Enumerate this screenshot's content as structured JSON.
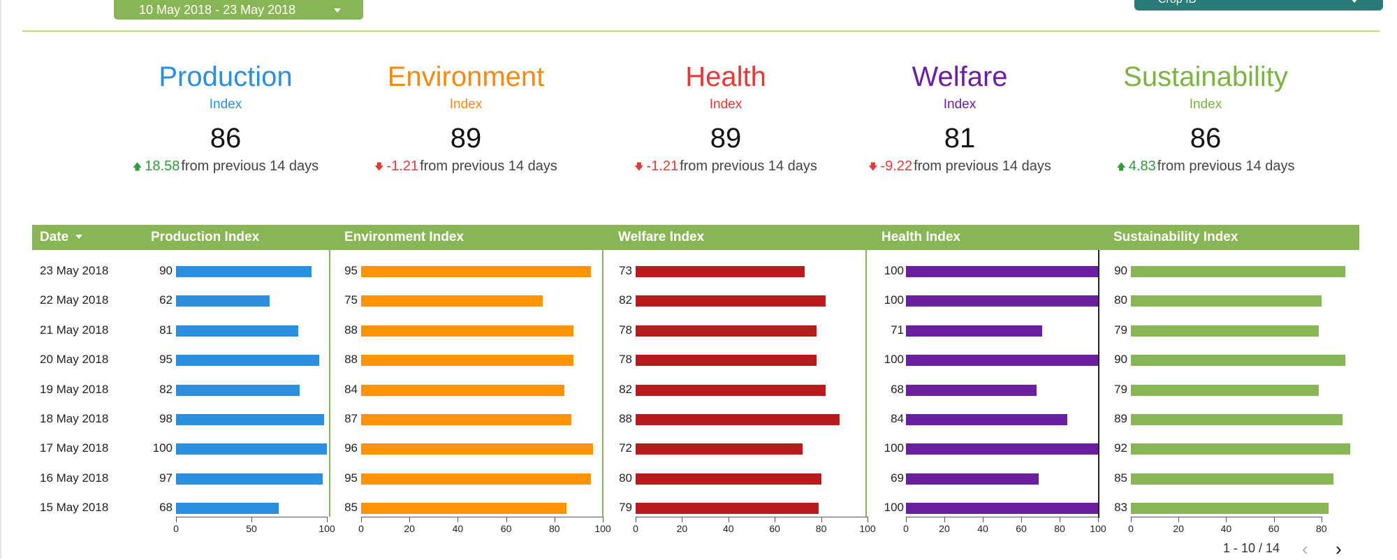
{
  "date_range": {
    "label": "10 May 2018 - 23 May 2018"
  },
  "crop_select": {
    "label": "Crop ID"
  },
  "kpis": [
    {
      "title": "Production",
      "subtitle": "Index",
      "value": "86",
      "direction": "up",
      "delta": "18.58",
      "suffix": "from previous 14 days",
      "color": "#2b8fe0",
      "delta_color": "#2e9a3a"
    },
    {
      "title": "Environment",
      "subtitle": "Index",
      "value": "89",
      "direction": "down",
      "delta": "-1.21",
      "suffix": "from previous 14 days",
      "color": "#f48a14",
      "delta_color": "#e53935"
    },
    {
      "title": "Health",
      "subtitle": "Index",
      "value": "89",
      "direction": "down",
      "delta": "-1.21",
      "suffix": "from previous 14 days",
      "color": "#e53935",
      "delta_color": "#e53935"
    },
    {
      "title": "Welfare",
      "subtitle": "Index",
      "value": "81",
      "direction": "down",
      "delta": "-9.22",
      "suffix": "from previous 14 days",
      "color": "#6a1fa0",
      "delta_color": "#e53935"
    },
    {
      "title": "Sustainability",
      "subtitle": "Index",
      "value": "86",
      "direction": "up",
      "delta": "4.83",
      "suffix": "from previous 14 days",
      "color": "#7cb342",
      "delta_color": "#2e9a3a"
    }
  ],
  "table": {
    "headers": [
      "Date",
      "Production Index",
      "Environment Index",
      "Welfare Index",
      "Health Index",
      "Sustainability Index"
    ],
    "rows": [
      {
        "date": "23 May 2018",
        "values": [
          90,
          95,
          73,
          100,
          90
        ]
      },
      {
        "date": "22 May 2018",
        "values": [
          62,
          75,
          82,
          100,
          80
        ]
      },
      {
        "date": "21 May 2018",
        "values": [
          81,
          88,
          78,
          71,
          79
        ]
      },
      {
        "date": "20 May 2018",
        "values": [
          95,
          88,
          78,
          100,
          90
        ]
      },
      {
        "date": "19 May 2018",
        "values": [
          82,
          84,
          82,
          68,
          79
        ]
      },
      {
        "date": "18 May 2018",
        "values": [
          98,
          87,
          88,
          84,
          89
        ]
      },
      {
        "date": "17 May 2018",
        "values": [
          100,
          96,
          72,
          100,
          92
        ]
      },
      {
        "date": "16 May 2018",
        "values": [
          97,
          95,
          80,
          69,
          85
        ]
      },
      {
        "date": "15 May 2018",
        "values": [
          68,
          85,
          79,
          100,
          83
        ]
      }
    ],
    "columns": [
      {
        "color": "#2b8fe0",
        "ticks": [
          "0",
          "50",
          "100"
        ]
      },
      {
        "color": "#ff9408",
        "ticks": [
          "0",
          "20",
          "40",
          "60",
          "80",
          "100"
        ]
      },
      {
        "color": "#b71c1c",
        "ticks": [
          "0",
          "20",
          "40",
          "60",
          "80",
          "100"
        ]
      },
      {
        "color": "#6a1fa0",
        "ticks": [
          "0",
          "20",
          "40",
          "60",
          "80",
          "100"
        ]
      },
      {
        "color": "#88b654",
        "ticks": [
          "0",
          "20",
          "40",
          "60",
          "80"
        ]
      }
    ]
  },
  "pagination": {
    "label": "1 - 10 / 14",
    "prev": "‹",
    "next": "›"
  }
}
